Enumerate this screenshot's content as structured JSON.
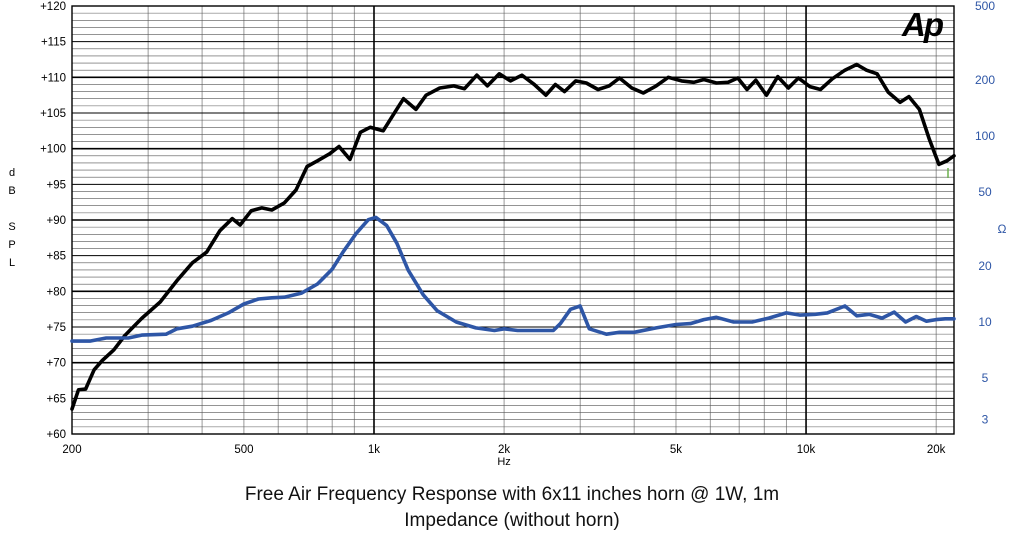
{
  "chart_data": {
    "type": "line",
    "title": "Free Air Frequency Response with 6x11 inches horn @ 1W, 1m",
    "subtitle": "Impedance (without horn)",
    "logo": "Ap",
    "xlabel": "Hz",
    "x_scale": "log",
    "xlim": [
      200,
      22000
    ],
    "x_ticks": [
      {
        "value": 200,
        "label": "200"
      },
      {
        "value": 500,
        "label": "500"
      },
      {
        "value": 1000,
        "label": "1k"
      },
      {
        "value": 2000,
        "label": "2k"
      },
      {
        "value": 5000,
        "label": "5k"
      },
      {
        "value": 10000,
        "label": "10k"
      },
      {
        "value": 20000,
        "label": "20k"
      }
    ],
    "ylabel_left": [
      "d",
      "B",
      "S",
      "P",
      "L"
    ],
    "ylim_left": [
      60,
      120
    ],
    "y_left_ticks": [
      {
        "value": 120,
        "label": "+120"
      },
      {
        "value": 115,
        "label": "+115"
      },
      {
        "value": 110,
        "label": "+110"
      },
      {
        "value": 105,
        "label": "+105"
      },
      {
        "value": 100,
        "label": "+100"
      },
      {
        "value": 95,
        "label": "+95"
      },
      {
        "value": 90,
        "label": "+90"
      },
      {
        "value": 85,
        "label": "+85"
      },
      {
        "value": 80,
        "label": "+80"
      },
      {
        "value": 75,
        "label": "+75"
      },
      {
        "value": 70,
        "label": "+70"
      },
      {
        "value": 65,
        "label": "+65"
      },
      {
        "value": 60,
        "label": "+60"
      }
    ],
    "ylabel_right": "Ω",
    "y_right_scale": "log",
    "ylim_right": [
      2.5,
      500
    ],
    "y_right_ticks": [
      {
        "value": 500,
        "label": "500"
      },
      {
        "value": 200,
        "label": "200"
      },
      {
        "value": 100,
        "label": "100"
      },
      {
        "value": 50,
        "label": "50"
      },
      {
        "value": 20,
        "label": "20"
      },
      {
        "value": 10,
        "label": "10"
      },
      {
        "value": 5,
        "label": "5"
      },
      {
        "value": 3,
        "label": "3"
      }
    ],
    "series": [
      {
        "name": "Frequency Response",
        "axis": "left",
        "color": "#000000",
        "points": [
          [
            200,
            63.5
          ],
          [
            207,
            66.2
          ],
          [
            215,
            66.3
          ],
          [
            225,
            69
          ],
          [
            235,
            70.3
          ],
          [
            250,
            71.8
          ],
          [
            265,
            73.8
          ],
          [
            290,
            76.2
          ],
          [
            320,
            78.5
          ],
          [
            350,
            81.5
          ],
          [
            380,
            84
          ],
          [
            410,
            85.5
          ],
          [
            440,
            88.5
          ],
          [
            470,
            90.2
          ],
          [
            490,
            89.3
          ],
          [
            520,
            91.3
          ],
          [
            550,
            91.7
          ],
          [
            580,
            91.4
          ],
          [
            620,
            92.4
          ],
          [
            660,
            94.2
          ],
          [
            700,
            97.5
          ],
          [
            740,
            98.3
          ],
          [
            790,
            99.3
          ],
          [
            830,
            100.3
          ],
          [
            880,
            98.5
          ],
          [
            930,
            102.3
          ],
          [
            980,
            103
          ],
          [
            1050,
            102.5
          ],
          [
            1120,
            105.2
          ],
          [
            1170,
            107
          ],
          [
            1250,
            105.5
          ],
          [
            1320,
            107.5
          ],
          [
            1420,
            108.5
          ],
          [
            1530,
            108.8
          ],
          [
            1620,
            108.4
          ],
          [
            1730,
            110.3
          ],
          [
            1830,
            108.8
          ],
          [
            1950,
            110.5
          ],
          [
            2070,
            109.5
          ],
          [
            2200,
            110.3
          ],
          [
            2350,
            109
          ],
          [
            2500,
            107.5
          ],
          [
            2630,
            109
          ],
          [
            2760,
            108
          ],
          [
            2930,
            109.5
          ],
          [
            3100,
            109.2
          ],
          [
            3300,
            108.3
          ],
          [
            3500,
            108.8
          ],
          [
            3700,
            109.9
          ],
          [
            3950,
            108.5
          ],
          [
            4200,
            107.8
          ],
          [
            4500,
            108.8
          ],
          [
            4800,
            110
          ],
          [
            5150,
            109.5
          ],
          [
            5500,
            109.3
          ],
          [
            5800,
            109.7
          ],
          [
            6200,
            109.2
          ],
          [
            6600,
            109.3
          ],
          [
            6950,
            109.9
          ],
          [
            7300,
            108.3
          ],
          [
            7650,
            109.6
          ],
          [
            8100,
            107.5
          ],
          [
            8600,
            110.1
          ],
          [
            9100,
            108.5
          ],
          [
            9600,
            109.9
          ],
          [
            10200,
            108.7
          ],
          [
            10800,
            108.3
          ],
          [
            11500,
            109.8
          ],
          [
            12300,
            111
          ],
          [
            13100,
            111.8
          ],
          [
            13800,
            111
          ],
          [
            14600,
            110.5
          ],
          [
            15500,
            107.9
          ],
          [
            16500,
            106.5
          ],
          [
            17300,
            107.3
          ],
          [
            18300,
            105.5
          ],
          [
            19300,
            101.3
          ],
          [
            20300,
            97.8
          ],
          [
            21200,
            98.3
          ],
          [
            22000,
            99
          ]
        ]
      },
      {
        "name": "Impedance",
        "axis": "right",
        "color": "#2e56a6",
        "points": [
          [
            200,
            7.9
          ],
          [
            220,
            7.9
          ],
          [
            240,
            8.2
          ],
          [
            270,
            8.2
          ],
          [
            290,
            8.5
          ],
          [
            330,
            8.6
          ],
          [
            350,
            9.2
          ],
          [
            380,
            9.5
          ],
          [
            420,
            10.2
          ],
          [
            460,
            11.2
          ],
          [
            500,
            12.5
          ],
          [
            540,
            13.3
          ],
          [
            580,
            13.5
          ],
          [
            620,
            13.6
          ],
          [
            680,
            14.3
          ],
          [
            740,
            16
          ],
          [
            800,
            19.2
          ],
          [
            850,
            24
          ],
          [
            910,
            30
          ],
          [
            970,
            35.5
          ],
          [
            1010,
            36.5
          ],
          [
            1070,
            33
          ],
          [
            1130,
            26.5
          ],
          [
            1200,
            19
          ],
          [
            1300,
            14
          ],
          [
            1400,
            11.5
          ],
          [
            1550,
            10
          ],
          [
            1720,
            9.3
          ],
          [
            1900,
            9
          ],
          [
            2000,
            9.2
          ],
          [
            2150,
            9
          ],
          [
            2400,
            9
          ],
          [
            2600,
            9
          ],
          [
            2700,
            9.8
          ],
          [
            2850,
            11.7
          ],
          [
            3000,
            12.2
          ],
          [
            3150,
            9.2
          ],
          [
            3450,
            8.6
          ],
          [
            3700,
            8.8
          ],
          [
            4000,
            8.8
          ],
          [
            4500,
            9.3
          ],
          [
            5000,
            9.7
          ],
          [
            5400,
            9.8
          ],
          [
            5800,
            10.3
          ],
          [
            6200,
            10.6
          ],
          [
            6800,
            10
          ],
          [
            7500,
            10
          ],
          [
            8200,
            10.5
          ],
          [
            9000,
            11.2
          ],
          [
            9700,
            10.9
          ],
          [
            10500,
            11
          ],
          [
            11200,
            11.2
          ],
          [
            12300,
            12.2
          ],
          [
            13100,
            10.8
          ],
          [
            14000,
            11
          ],
          [
            15000,
            10.5
          ],
          [
            16000,
            11.3
          ],
          [
            17000,
            10
          ],
          [
            18000,
            10.7
          ],
          [
            19000,
            10.1
          ],
          [
            20000,
            10.3
          ],
          [
            21000,
            10.4
          ],
          [
            22000,
            10.4
          ]
        ]
      }
    ]
  }
}
